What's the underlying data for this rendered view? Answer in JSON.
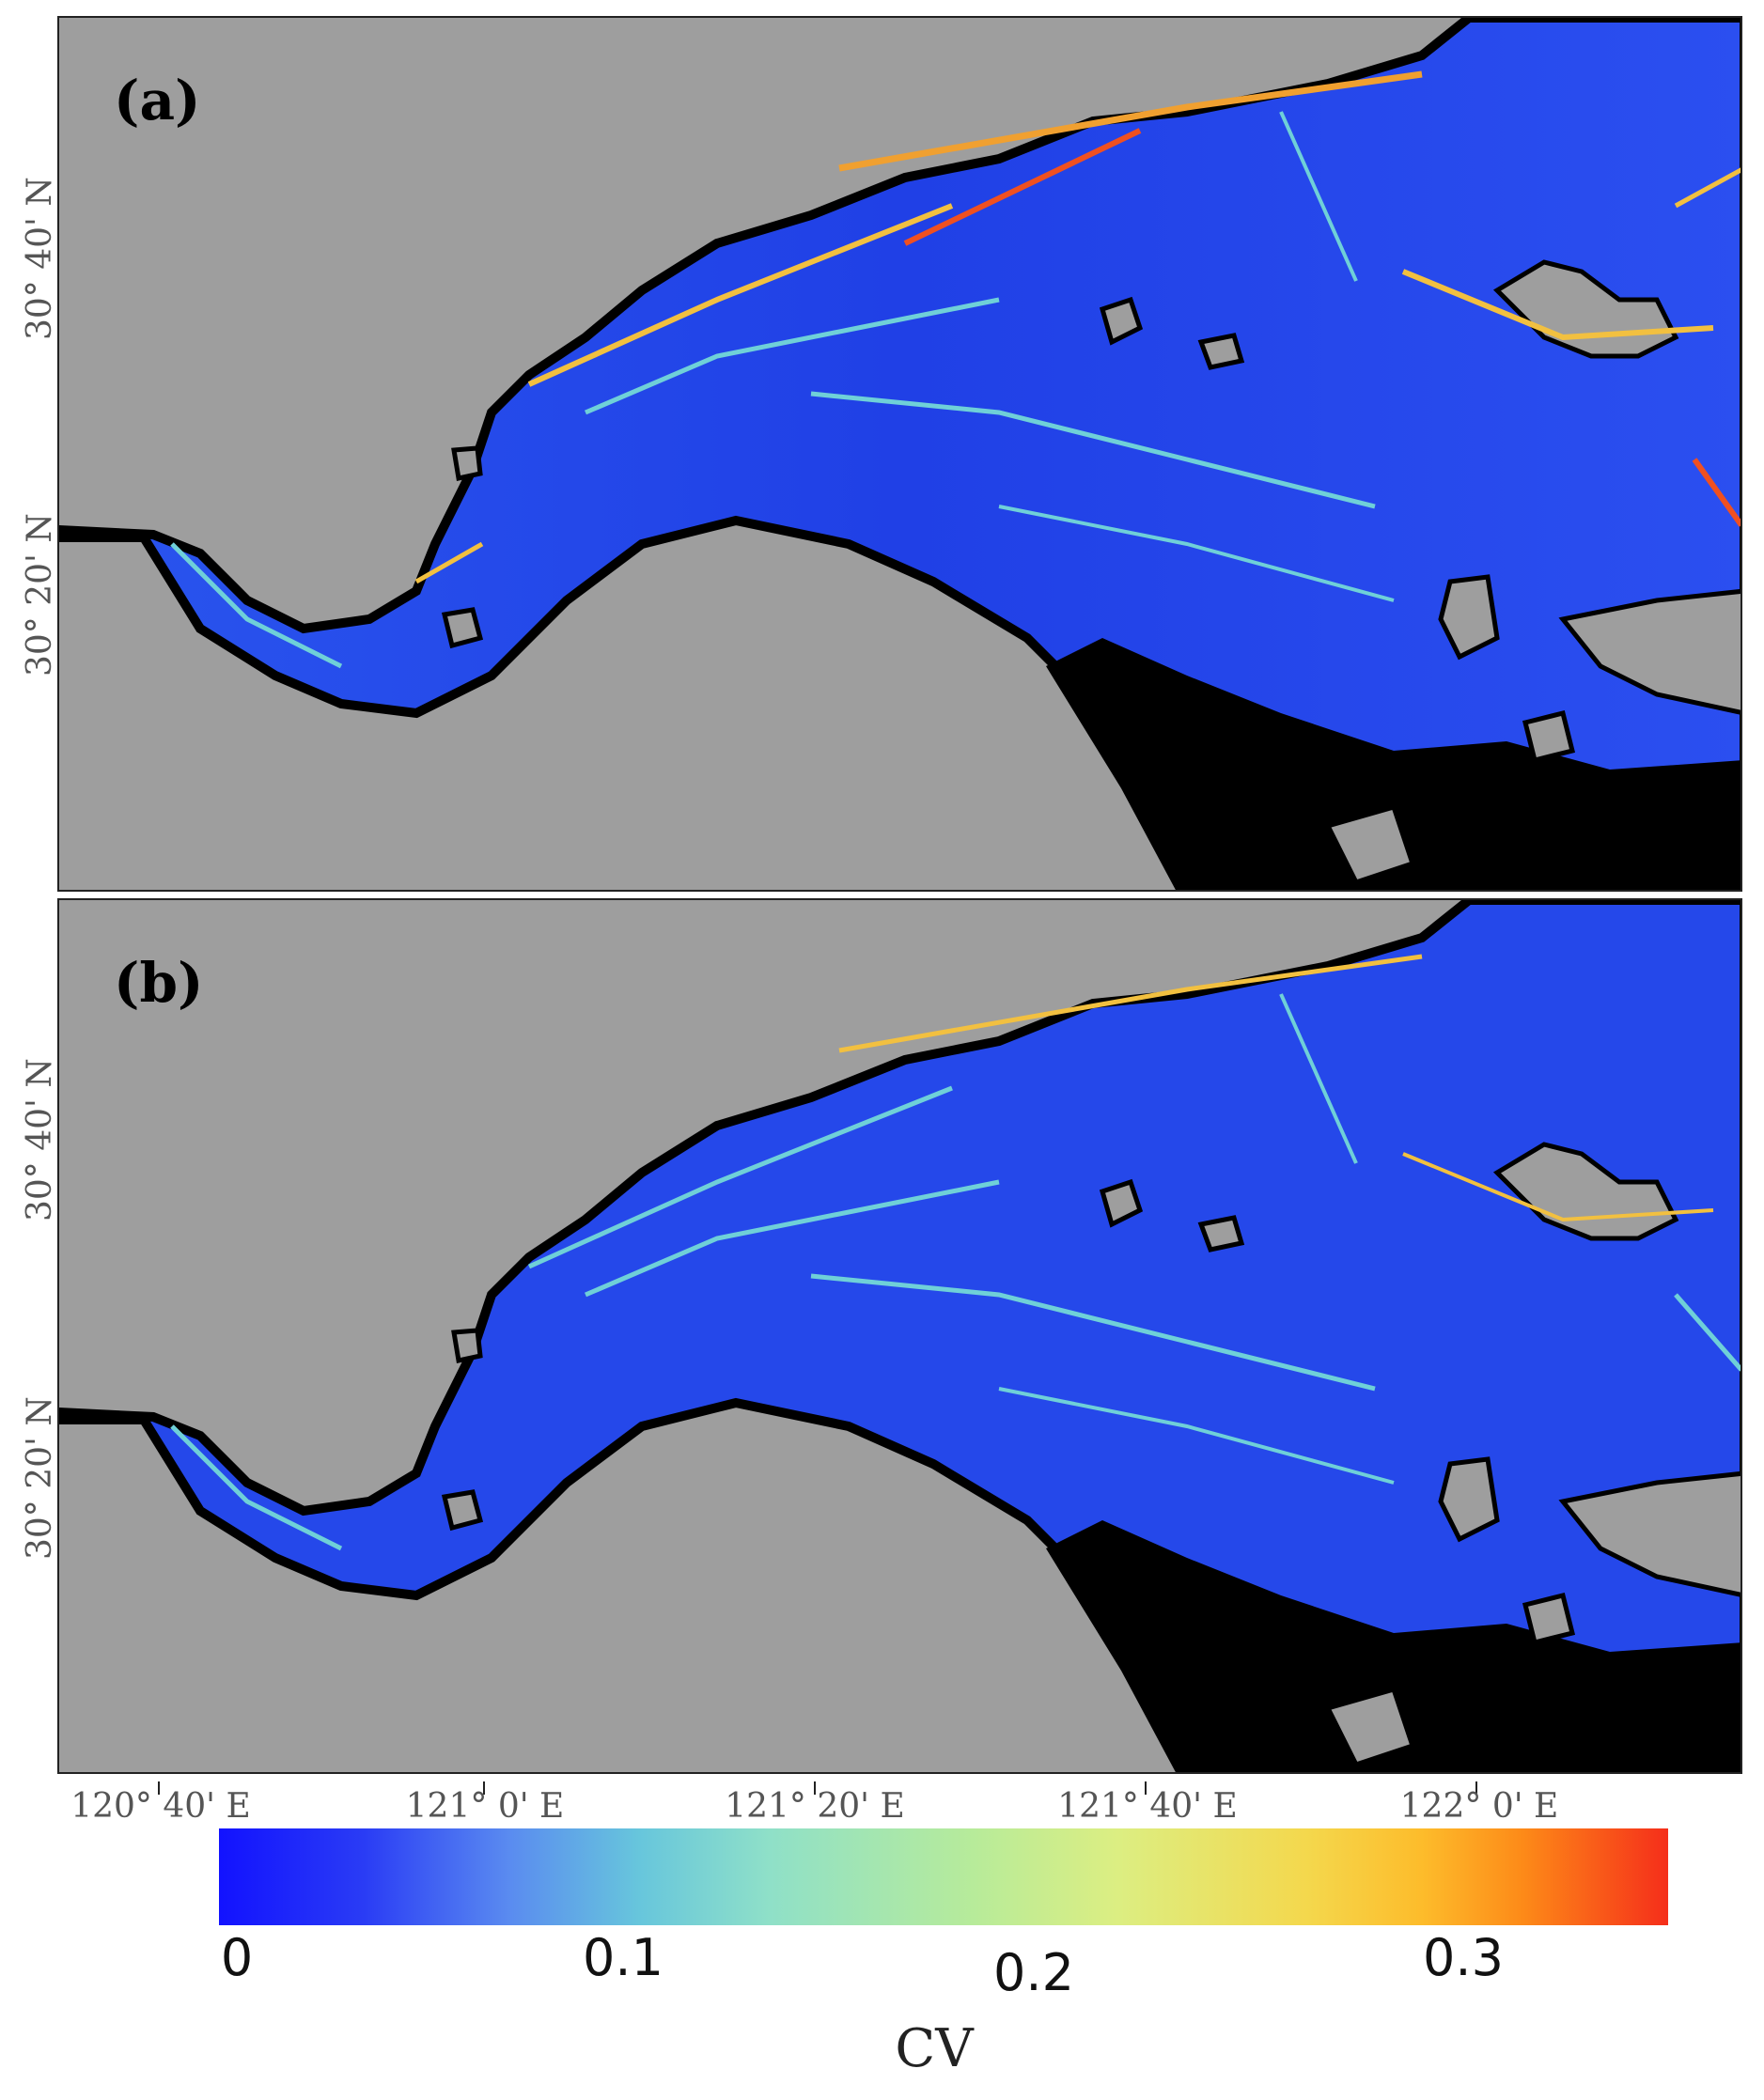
{
  "panels": [
    {
      "label": "(a)"
    },
    {
      "label": "(b)"
    }
  ],
  "lat_labels": [
    "30° 40' N",
    "30° 20' N"
  ],
  "lon_labels": [
    "120° 40' E",
    "121° 0' E",
    "121° 20' E",
    "121° 40' E",
    "122° 0' E"
  ],
  "colorbar": {
    "title": "CV",
    "ticks": [
      "0",
      "0.1",
      "0.2",
      "0.3"
    ],
    "range": [
      0,
      0.35
    ],
    "colormap": [
      "#1212ff",
      "#5a8bf0",
      "#67c6dc",
      "#b7eb9a",
      "#f4d84d",
      "#fd8a18",
      "#f52e1a"
    ]
  },
  "colors": {
    "land": "#9e9e9e",
    "water_base": "#2347e8",
    "shoreline": "#000000",
    "no_data": "#000000"
  }
}
